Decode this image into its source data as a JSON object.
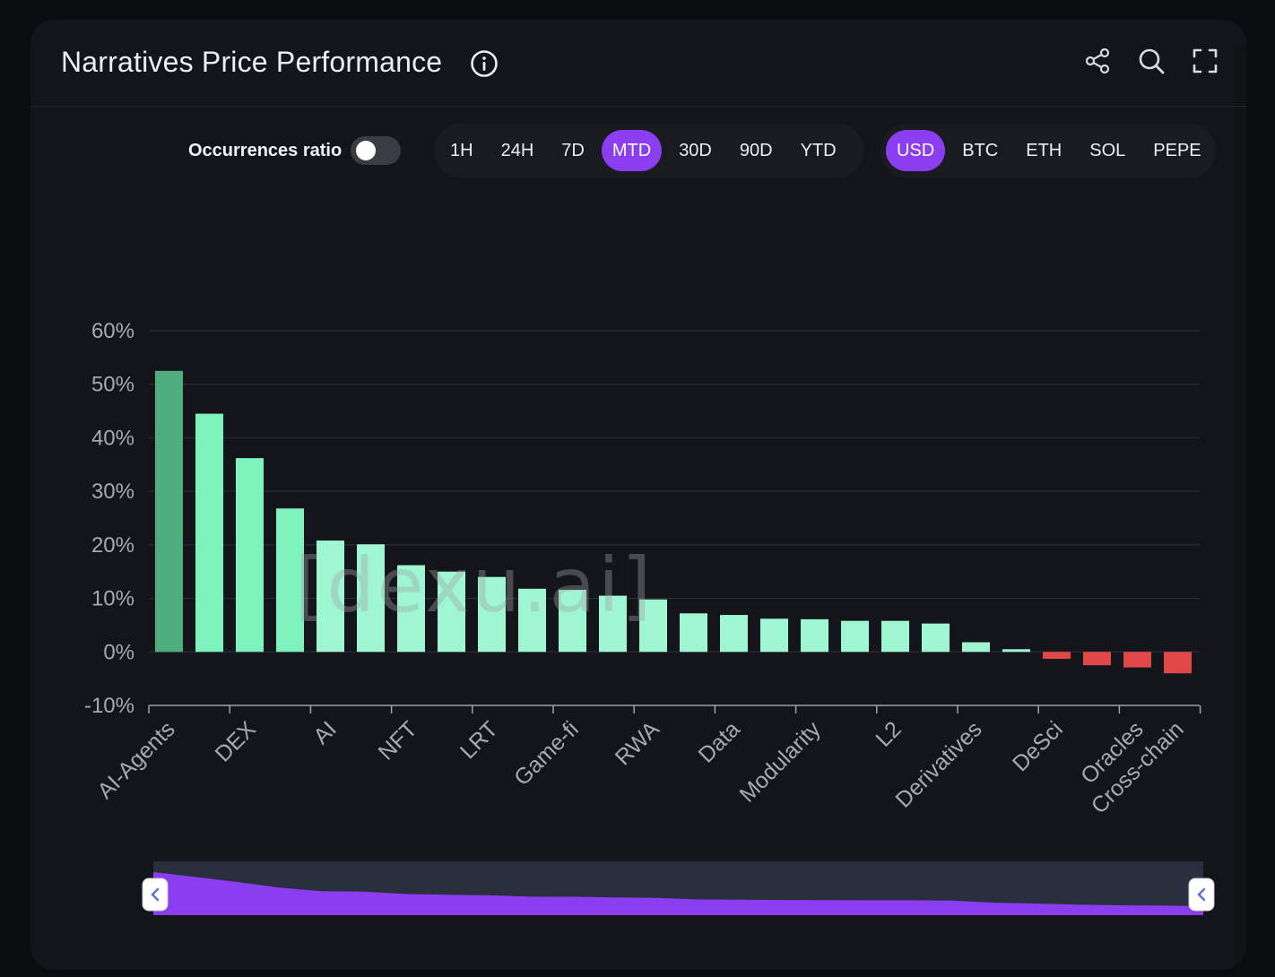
{
  "header": {
    "title": "Narratives Price Performance"
  },
  "controls": {
    "occurrences_label": "Occurrences ratio",
    "occurrences_on": false,
    "timeframes": [
      "1H",
      "24H",
      "7D",
      "MTD",
      "30D",
      "90D",
      "YTD"
    ],
    "active_timeframe": "MTD",
    "currencies": [
      "USD",
      "BTC",
      "ETH",
      "SOL",
      "PEPE"
    ],
    "active_currency": "USD"
  },
  "colors": {
    "accent": "#8b3df0",
    "positive_top": "#4fae7e",
    "positive": "#7ef2bd",
    "positive_light": "#9ef7d2",
    "negative": "#e04848"
  },
  "watermark": "[dexu.ai]",
  "chart_data": {
    "type": "bar",
    "title": "Narratives Price Performance",
    "categories": [
      "AI-Agents",
      "",
      "DEX",
      "",
      "AI",
      "",
      "NFT",
      "",
      "LRT",
      "",
      "Game-fi",
      "",
      "RWA",
      "",
      "Data",
      "",
      "Modularity",
      "",
      "L2",
      "",
      "Derivatives",
      "",
      "DeSci",
      "",
      "Oracles",
      "Cross-chain"
    ],
    "values": [
      52.5,
      44.5,
      36.2,
      26.8,
      20.8,
      20.1,
      16.2,
      15.0,
      14.0,
      11.8,
      11.6,
      10.5,
      9.8,
      7.2,
      6.9,
      6.2,
      6.1,
      5.8,
      5.8,
      5.3,
      1.8,
      0.5,
      -1.3,
      -2.5,
      -2.9,
      -4.0
    ],
    "ylim": [
      -10,
      60
    ],
    "yticks": [
      60,
      50,
      40,
      30,
      20,
      10,
      0,
      -10
    ],
    "ytick_labels": [
      "60%",
      "50%",
      "40%",
      "30%",
      "20%",
      "10%",
      "0%",
      "-10%"
    ],
    "xlabel": "",
    "ylabel": "",
    "grid": true,
    "zoom_range": [
      0,
      100
    ]
  }
}
